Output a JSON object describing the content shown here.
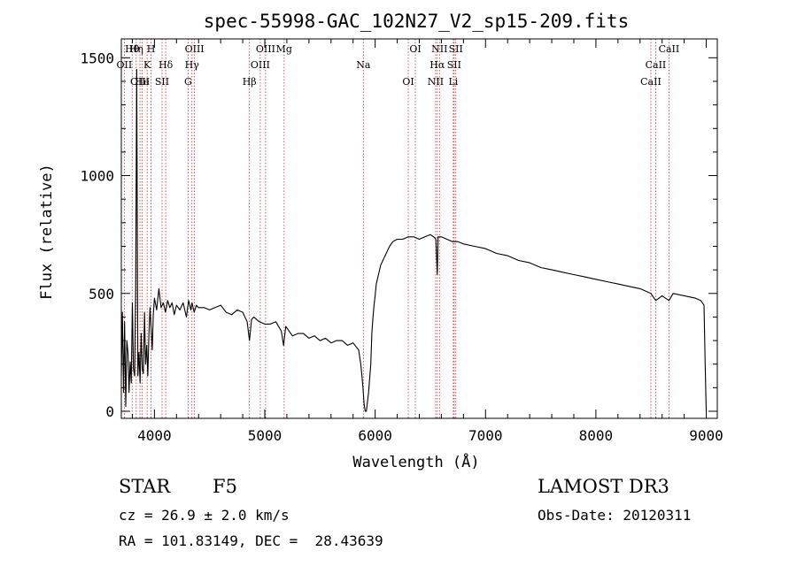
{
  "chart_data": {
    "type": "line",
    "title": "spec-55998-GAC_102N27_V2_sp15-209.fits",
    "xlabel": "Wavelength (Å)",
    "ylabel": "Flux (relative)",
    "xlim": [
      3700,
      9100
    ],
    "ylim": [
      -30,
      1580
    ],
    "xticks": [
      4000,
      5000,
      6000,
      7000,
      8000,
      9000
    ],
    "yticks": [
      0,
      500,
      1000,
      1500
    ],
    "series": [
      {
        "name": "spectrum",
        "x": [
          3700,
          3710,
          3720,
          3730,
          3740,
          3750,
          3760,
          3770,
          3780,
          3790,
          3800,
          3810,
          3820,
          3830,
          3840,
          3850,
          3860,
          3870,
          3880,
          3890,
          3900,
          3910,
          3920,
          3930,
          3940,
          3950,
          3960,
          3970,
          3980,
          3990,
          4000,
          4020,
          4040,
          4060,
          4080,
          4100,
          4120,
          4140,
          4160,
          4180,
          4200,
          4230,
          4260,
          4290,
          4310,
          4330,
          4340,
          4360,
          4380,
          4400,
          4450,
          4500,
          4550,
          4600,
          4650,
          4700,
          4750,
          4800,
          4840,
          4861,
          4880,
          4900,
          4950,
          5000,
          5050,
          5100,
          5150,
          5170,
          5190,
          5250,
          5300,
          5350,
          5400,
          5450,
          5500,
          5550,
          5600,
          5650,
          5700,
          5750,
          5800,
          5850,
          5870,
          5880,
          5890,
          5895,
          5900,
          5910,
          5920,
          5940,
          5960,
          5970,
          5980,
          5990,
          6000,
          6010,
          6030,
          6050,
          6080,
          6100,
          6130,
          6160,
          6200,
          6250,
          6300,
          6350,
          6400,
          6450,
          6500,
          6530,
          6550,
          6560,
          6563,
          6566,
          6570,
          6600,
          6650,
          6700,
          6750,
          6800,
          6900,
          7000,
          7100,
          7200,
          7300,
          7400,
          7500,
          7600,
          7700,
          7800,
          7900,
          8000,
          8100,
          8200,
          8300,
          8400,
          8498,
          8542,
          8600,
          8662,
          8700,
          8800,
          8900,
          8950,
          8980,
          8990,
          9000
        ],
        "y": [
          150,
          420,
          80,
          380,
          20,
          300,
          250,
          80,
          210,
          120,
          460,
          180,
          150,
          520,
          1450,
          150,
          250,
          120,
          330,
          180,
          160,
          420,
          200,
          280,
          150,
          330,
          440,
          350,
          260,
          410,
          480,
          430,
          520,
          440,
          460,
          420,
          470,
          440,
          460,
          410,
          450,
          430,
          460,
          400,
          470,
          430,
          460,
          420,
          450,
          440,
          440,
          430,
          440,
          450,
          420,
          410,
          430,
          420,
          380,
          300,
          390,
          400,
          380,
          370,
          370,
          380,
          340,
          280,
          360,
          320,
          330,
          330,
          310,
          320,
          300,
          310,
          290,
          300,
          300,
          280,
          290,
          260,
          200,
          150,
          100,
          60,
          30,
          0,
          0,
          80,
          200,
          330,
          400,
          450,
          490,
          540,
          580,
          620,
          650,
          670,
          700,
          720,
          730,
          730,
          740,
          740,
          730,
          740,
          750,
          740,
          730,
          620,
          580,
          650,
          740,
          740,
          730,
          720,
          720,
          710,
          700,
          690,
          670,
          660,
          640,
          630,
          610,
          600,
          590,
          580,
          570,
          560,
          550,
          540,
          530,
          520,
          500,
          470,
          490,
          470,
          500,
          490,
          480,
          470,
          450,
          200,
          0
        ]
      }
    ],
    "lines": [
      {
        "name": "Hθ",
        "x": 3798
      },
      {
        "name": "OII",
        "x": 3727
      },
      {
        "name": "OIII",
        "x": 3869
      },
      {
        "name": "Hη",
        "x": 3835
      },
      {
        "name": "K",
        "x": 3934
      },
      {
        "name": "He",
        "x": 3889
      },
      {
        "name": "H",
        "x": 3969
      },
      {
        "name": "Hδ",
        "x": 4102
      },
      {
        "name": "SII",
        "x": 4069
      },
      {
        "name": "OIII",
        "x": 4363
      },
      {
        "name": "Hγ",
        "x": 4340
      },
      {
        "name": "G",
        "x": 4305
      },
      {
        "name": "OIII",
        "x": 5007
      },
      {
        "name": "OIII",
        "x": 4959
      },
      {
        "name": "Hβ",
        "x": 4861
      },
      {
        "name": "Mg",
        "x": 5175
      },
      {
        "name": "Na",
        "x": 5893
      },
      {
        "name": "OI",
        "x": 6300
      },
      {
        "name": "OI",
        "x": 6364
      },
      {
        "name": "Hα",
        "x": 6563
      },
      {
        "name": "NII",
        "x": 6548
      },
      {
        "name": "NII",
        "x": 6583
      },
      {
        "name": "SII",
        "x": 6716
      },
      {
        "name": "Li",
        "x": 6708
      },
      {
        "name": "SII",
        "x": 6731
      },
      {
        "name": "CaII",
        "x": 8542
      },
      {
        "name": "CaII",
        "x": 8498
      },
      {
        "name": "CaII",
        "x": 8662
      }
    ],
    "colors": {
      "axis": "#000000",
      "spectrum": "#000000",
      "lines": "#c83232"
    }
  },
  "info": {
    "class": "STAR",
    "subclass": "F5",
    "survey": "LAMOST DR3",
    "cz": "cz = 26.9 ± 2.0 km/s",
    "obsdate": "Obs-Date: 20120311",
    "radec": "RA = 101.83149, DEC =  28.43639"
  }
}
